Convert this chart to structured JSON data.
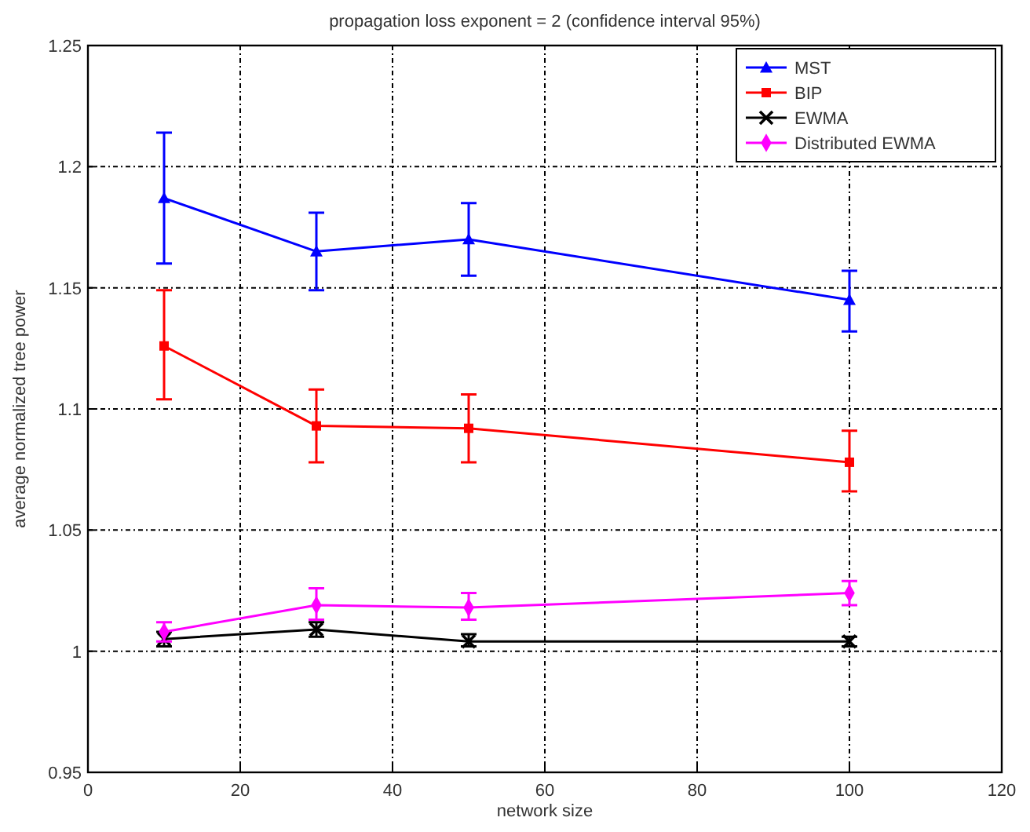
{
  "chart_data": {
    "type": "line",
    "title": "propagation loss exponent = 2 (confidence interval 95%)",
    "xlabel": "network size",
    "ylabel": "average normalized tree power",
    "x": [
      10,
      30,
      50,
      100
    ],
    "series": [
      {
        "name": "MST",
        "color": "#0000ff",
        "marker": "triangle",
        "values": [
          1.187,
          1.165,
          1.17,
          1.145
        ],
        "errors": [
          [
            1.16,
            1.214
          ],
          [
            1.149,
            1.181
          ],
          [
            1.155,
            1.185
          ],
          [
            1.132,
            1.157
          ]
        ]
      },
      {
        "name": "BIP",
        "color": "#ff0000",
        "marker": "square",
        "values": [
          1.126,
          1.093,
          1.092,
          1.078
        ],
        "errors": [
          [
            1.104,
            1.149
          ],
          [
            1.078,
            1.108
          ],
          [
            1.078,
            1.106
          ],
          [
            1.066,
            1.091
          ]
        ]
      },
      {
        "name": "EWMA",
        "color": "#000000",
        "marker": "cross",
        "values": [
          1.005,
          1.009,
          1.004,
          1.004
        ],
        "errors": [
          [
            1.002,
            1.008
          ],
          [
            1.006,
            1.012
          ],
          [
            1.002,
            1.007
          ],
          [
            1.002,
            1.006
          ]
        ]
      },
      {
        "name": "Distributed EWMA",
        "color": "#ff00ff",
        "marker": "diamond",
        "values": [
          1.008,
          1.019,
          1.018,
          1.024
        ],
        "errors": [
          [
            1.004,
            1.012
          ],
          [
            1.013,
            1.026
          ],
          [
            1.013,
            1.024
          ],
          [
            1.019,
            1.029
          ]
        ]
      }
    ],
    "xlim": [
      0,
      120
    ],
    "xticks": [
      0,
      20,
      40,
      60,
      80,
      100,
      120
    ],
    "ylim": [
      0.95,
      1.25
    ],
    "yticks": [
      0.95,
      1,
      1.05,
      1.1,
      1.15,
      1.2,
      1.25
    ],
    "grid": true,
    "legend": "top right",
    "line_style": "solid"
  }
}
